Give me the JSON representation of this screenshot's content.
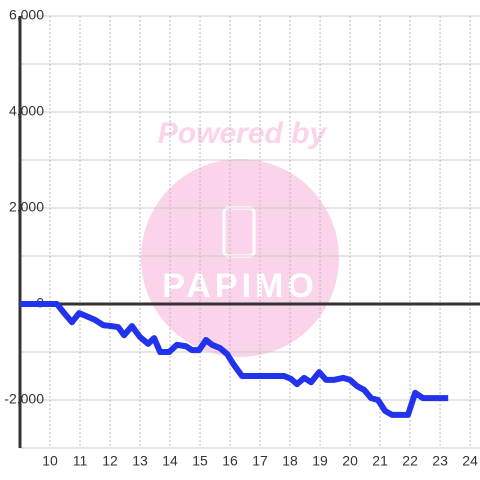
{
  "chart_data": {
    "type": "line",
    "watermark": {
      "heading": "Powered by",
      "brand": "PAPIMO"
    },
    "x": [
      9,
      10.23,
      10.5,
      10.73,
      10.97,
      11.2,
      11.5,
      11.77,
      12.03,
      12.27,
      12.47,
      12.73,
      13,
      13.27,
      13.47,
      13.67,
      13.97,
      14.23,
      14.53,
      14.73,
      14.97,
      15.2,
      15.4,
      15.67,
      15.9,
      16.13,
      16.4,
      17.8,
      18.03,
      18.23,
      18.47,
      18.7,
      18.97,
      19.2,
      19.47,
      19.77,
      20,
      20.23,
      20.47,
      20.7,
      20.93,
      21.17,
      21.4,
      21.93,
      22.17,
      22.43,
      23.27
    ],
    "series": [
      {
        "color": "#2233ee",
        "values": [
          0,
          0,
          -210,
          -380,
          -190,
          -250,
          -330,
          -440,
          -460,
          -480,
          -650,
          -460,
          -690,
          -830,
          -710,
          -1000,
          -1000,
          -850,
          -880,
          -960,
          -960,
          -750,
          -850,
          -920,
          -1040,
          -1270,
          -1500,
          -1500,
          -1560,
          -1670,
          -1540,
          -1630,
          -1420,
          -1580,
          -1580,
          -1540,
          -1580,
          -1710,
          -1790,
          -1960,
          -2000,
          -2230,
          -2310,
          -2310,
          -1850,
          -1960,
          -1960
        ]
      }
    ],
    "xlim": [
      9,
      24.33
    ],
    "xticks": [
      10,
      11,
      12,
      13,
      14,
      15,
      16,
      17,
      18,
      19,
      20,
      21,
      22,
      23,
      24
    ],
    "ylim": [
      -3000,
      6000
    ],
    "yticks": [
      {
        "value": 6000,
        "label": "6,000"
      },
      {
        "value": 4000,
        "label": "4,000"
      },
      {
        "value": 2000,
        "label": "2,000"
      },
      0,
      {
        "value": -2000,
        "label": "-2,000"
      }
    ],
    "y_minor_ticks": [
      5000,
      3000,
      1000,
      -1000,
      -3000
    ],
    "grid": true
  }
}
